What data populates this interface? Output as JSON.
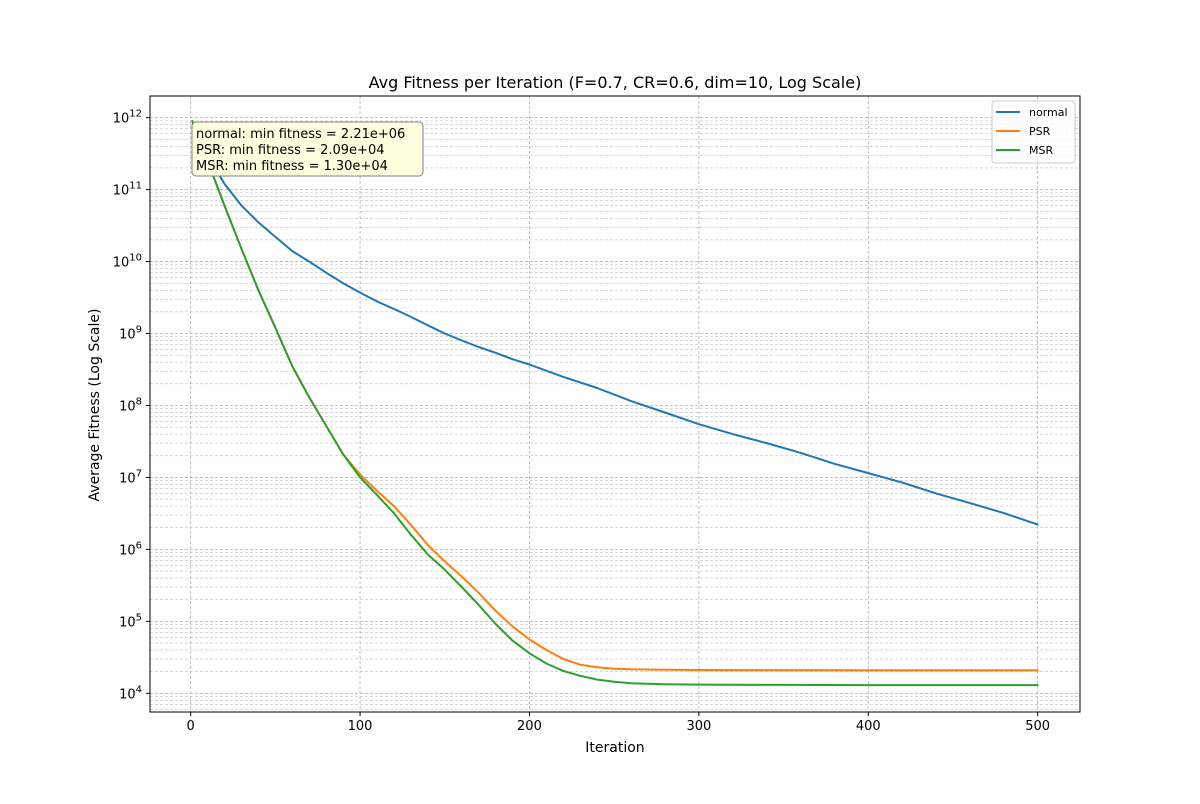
{
  "chart_data": {
    "type": "line",
    "title": "Avg Fitness per Iteration (F=0.7, CR=0.6, dim=10, Log Scale)",
    "xlabel": "Iteration",
    "ylabel": "Average Fitness (Log Scale)",
    "xlim": [
      -24,
      525
    ],
    "ylim": [
      5500,
      2000000000000.0
    ],
    "yscale": "log",
    "xticks": [
      0,
      100,
      200,
      300,
      400,
      500
    ],
    "xtick_labels": [
      "0",
      "100",
      "200",
      "300",
      "400",
      "500"
    ],
    "yticks": [
      10000,
      100000,
      1000000,
      10000000,
      100000000,
      1000000000,
      10000000000,
      100000000000,
      1000000000000
    ],
    "ytick_labels": [
      {
        "base": "10",
        "exp": "4"
      },
      {
        "base": "10",
        "exp": "5"
      },
      {
        "base": "10",
        "exp": "6"
      },
      {
        "base": "10",
        "exp": "7"
      },
      {
        "base": "10",
        "exp": "8"
      },
      {
        "base": "10",
        "exp": "9"
      },
      {
        "base": "10",
        "exp": "10"
      },
      {
        "base": "10",
        "exp": "11"
      },
      {
        "base": "10",
        "exp": "12"
      }
    ],
    "grid": true,
    "legend_position": "top-right",
    "annotation": [
      "normal: min fitness = 2.21e+06",
      "PSR: min fitness = 2.09e+04",
      "MSR: min fitness = 1.30e+04"
    ],
    "series": [
      {
        "name": "normal",
        "color": "#1f77b4",
        "x": [
          1,
          10,
          20,
          30,
          40,
          50,
          60,
          70,
          80,
          90,
          100,
          110,
          120,
          130,
          140,
          150,
          160,
          170,
          180,
          190,
          200,
          220,
          240,
          260,
          280,
          300,
          320,
          340,
          360,
          380,
          400,
          420,
          440,
          460,
          480,
          500
        ],
        "y": [
          900000000000,
          300000000000,
          120000000000,
          60000000000,
          35000000000,
          22000000000,
          14000000000,
          10000000000,
          7000000000,
          5000000000,
          3700000000,
          2800000000,
          2200000000,
          1700000000,
          1300000000,
          1000000000,
          800000000,
          650000000,
          540000000,
          440000000,
          370000000,
          250000000,
          175000000,
          115000000,
          80000000,
          55000000,
          40000000,
          30000000,
          22000000,
          15500000,
          11500000,
          8500000,
          6000000,
          4400000,
          3200000,
          2210000
        ]
      },
      {
        "name": "PSR",
        "color": "#ff7f0e",
        "x": [
          1,
          10,
          20,
          30,
          40,
          50,
          60,
          70,
          80,
          90,
          100,
          110,
          120,
          130,
          140,
          150,
          160,
          170,
          180,
          190,
          200,
          210,
          220,
          230,
          240,
          250,
          260,
          280,
          300,
          350,
          400,
          450,
          500
        ],
        "y": [
          900000000000,
          250000000000,
          60000000000,
          15000000000,
          4000000000,
          1200000000,
          350000000,
          130000000,
          52000000,
          21000000,
          11000000,
          6500000,
          4000000,
          2200000,
          1150000,
          680000,
          420000,
          250000,
          140000,
          85000,
          56000,
          40000,
          30000,
          25000,
          23000,
          22000,
          21600,
          21300,
          21100,
          21000,
          20900,
          20900,
          20900
        ]
      },
      {
        "name": "MSR",
        "color": "#2ca02c",
        "x": [
          1,
          10,
          20,
          30,
          40,
          50,
          60,
          70,
          80,
          90,
          100,
          110,
          120,
          130,
          140,
          150,
          160,
          170,
          180,
          190,
          200,
          210,
          220,
          230,
          240,
          250,
          260,
          280,
          300,
          350,
          400,
          450,
          500
        ],
        "y": [
          900000000000,
          250000000000,
          60000000000,
          15000000000,
          4000000000,
          1200000000,
          350000000,
          130000000,
          52000000,
          21000000,
          10000000,
          5700000,
          3200000,
          1600000,
          850000,
          520000,
          300000,
          170000,
          92000,
          54000,
          36000,
          26000,
          20500,
          17500,
          15500,
          14500,
          13800,
          13400,
          13200,
          13100,
          13000,
          13000,
          13000
        ]
      }
    ]
  }
}
